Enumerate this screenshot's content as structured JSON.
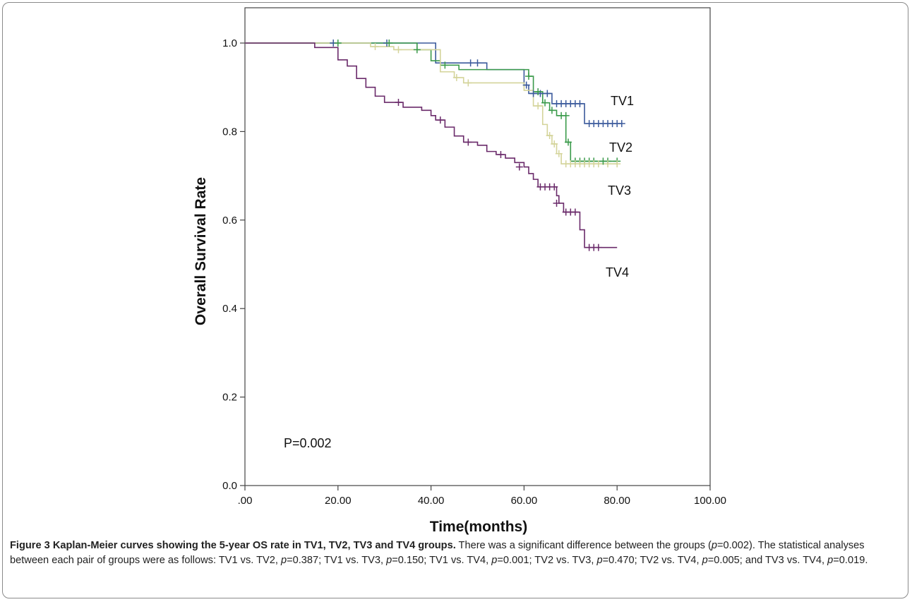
{
  "chart_data": {
    "type": "line",
    "subtype": "kaplan-meier",
    "xlabel": "Time(months)",
    "ylabel": "Overall Survival Rate",
    "xlim": [
      0,
      100
    ],
    "ylim": [
      0,
      1
    ],
    "xticks": [
      ".00",
      "20.00",
      "40.00",
      "60.00",
      "80.00",
      "100.00"
    ],
    "yticks": [
      "0.0",
      "0.2",
      "0.4",
      "0.6",
      "0.8",
      "1.0"
    ],
    "grid": false,
    "annotation": "P=0.002",
    "series": [
      {
        "name": "TV1",
        "color": "#3b5a9c",
        "steps": [
          [
            0,
            1.0
          ],
          [
            41,
            0.955
          ],
          [
            52,
            0.94
          ],
          [
            60,
            0.905
          ],
          [
            61,
            0.886
          ],
          [
            66,
            0.863
          ],
          [
            73,
            0.818
          ],
          [
            81,
            0.818
          ]
        ],
        "censored": [
          [
            19,
            1.0
          ],
          [
            30.5,
            1.0
          ],
          [
            48.5,
            0.955
          ],
          [
            50,
            0.955
          ],
          [
            60.5,
            0.905
          ],
          [
            62,
            0.886
          ],
          [
            63.5,
            0.886
          ],
          [
            65,
            0.886
          ],
          [
            67,
            0.863
          ],
          [
            68,
            0.863
          ],
          [
            69,
            0.863
          ],
          [
            70,
            0.863
          ],
          [
            71,
            0.863
          ],
          [
            72,
            0.863
          ],
          [
            74,
            0.818
          ],
          [
            75,
            0.818
          ],
          [
            76,
            0.818
          ],
          [
            77,
            0.818
          ],
          [
            78,
            0.818
          ],
          [
            79,
            0.818
          ],
          [
            80,
            0.818
          ],
          [
            81,
            0.818
          ]
        ]
      },
      {
        "name": "TV2",
        "color": "#3a9a4a",
        "steps": [
          [
            0,
            1.0
          ],
          [
            37,
            0.985
          ],
          [
            40,
            0.96
          ],
          [
            42,
            0.95
          ],
          [
            46,
            0.94
          ],
          [
            61,
            0.925
          ],
          [
            62,
            0.89
          ],
          [
            64,
            0.865
          ],
          [
            65.5,
            0.848
          ],
          [
            67,
            0.836
          ],
          [
            69,
            0.776
          ],
          [
            70,
            0.733
          ],
          [
            80,
            0.733
          ]
        ],
        "censored": [
          [
            20,
            1.0
          ],
          [
            31,
            1.0
          ],
          [
            37,
            0.985
          ],
          [
            43,
            0.95
          ],
          [
            61,
            0.925
          ],
          [
            63,
            0.89
          ],
          [
            64.5,
            0.865
          ],
          [
            66,
            0.848
          ],
          [
            68,
            0.836
          ],
          [
            69,
            0.836
          ],
          [
            69.5,
            0.776
          ],
          [
            71,
            0.733
          ],
          [
            72,
            0.733
          ],
          [
            73,
            0.733
          ],
          [
            74,
            0.733
          ],
          [
            75,
            0.733
          ],
          [
            77,
            0.733
          ],
          [
            78,
            0.733
          ],
          [
            80,
            0.733
          ]
        ]
      },
      {
        "name": "TV3",
        "color": "#d4d49a",
        "steps": [
          [
            0,
            1.0
          ],
          [
            27,
            0.992
          ],
          [
            32,
            0.985
          ],
          [
            42,
            0.935
          ],
          [
            45,
            0.922
          ],
          [
            47,
            0.91
          ],
          [
            60,
            0.893
          ],
          [
            62,
            0.858
          ],
          [
            64,
            0.816
          ],
          [
            65,
            0.791
          ],
          [
            66,
            0.772
          ],
          [
            67,
            0.75
          ],
          [
            68,
            0.727
          ],
          [
            80,
            0.727
          ]
        ],
        "censored": [
          [
            28,
            0.992
          ],
          [
            33,
            0.985
          ],
          [
            45.5,
            0.922
          ],
          [
            48,
            0.91
          ],
          [
            63,
            0.858
          ],
          [
            65.5,
            0.791
          ],
          [
            66.5,
            0.772
          ],
          [
            67.5,
            0.75
          ],
          [
            69,
            0.727
          ],
          [
            70,
            0.727
          ],
          [
            71,
            0.727
          ],
          [
            72,
            0.727
          ],
          [
            73,
            0.727
          ],
          [
            74,
            0.727
          ],
          [
            75,
            0.727
          ],
          [
            76,
            0.727
          ],
          [
            78,
            0.727
          ],
          [
            80,
            0.727
          ]
        ]
      },
      {
        "name": "TV4",
        "color": "#6a2a6a",
        "steps": [
          [
            0,
            1.0
          ],
          [
            15,
            0.99
          ],
          [
            20,
            0.962
          ],
          [
            22,
            0.948
          ],
          [
            24,
            0.92
          ],
          [
            26,
            0.9
          ],
          [
            28,
            0.88
          ],
          [
            30,
            0.866
          ],
          [
            34,
            0.855
          ],
          [
            38,
            0.848
          ],
          [
            40,
            0.836
          ],
          [
            41,
            0.826
          ],
          [
            43,
            0.81
          ],
          [
            45,
            0.79
          ],
          [
            47,
            0.776
          ],
          [
            50,
            0.769
          ],
          [
            52,
            0.755
          ],
          [
            54,
            0.748
          ],
          [
            56,
            0.74
          ],
          [
            58,
            0.73
          ],
          [
            60,
            0.72
          ],
          [
            61,
            0.705
          ],
          [
            62,
            0.692
          ],
          [
            63,
            0.675
          ],
          [
            67,
            0.655
          ],
          [
            67.5,
            0.638
          ],
          [
            68.5,
            0.618
          ],
          [
            72,
            0.578
          ],
          [
            73,
            0.538
          ],
          [
            80,
            0.538
          ]
        ],
        "censored": [
          [
            33,
            0.866
          ],
          [
            42,
            0.826
          ],
          [
            48,
            0.776
          ],
          [
            55,
            0.748
          ],
          [
            59,
            0.72
          ],
          [
            63.5,
            0.675
          ],
          [
            64.5,
            0.675
          ],
          [
            65.5,
            0.675
          ],
          [
            66.5,
            0.675
          ],
          [
            67,
            0.638
          ],
          [
            69,
            0.618
          ],
          [
            70,
            0.618
          ],
          [
            71,
            0.618
          ],
          [
            74,
            0.538
          ],
          [
            75,
            0.538
          ],
          [
            76,
            0.538
          ]
        ]
      }
    ],
    "series_labels": [
      "TV1",
      "TV2",
      "TV3",
      "TV4"
    ]
  },
  "caption": {
    "title": "Figure 3 Kaplan-Meier curves showing the 5-year OS rate in TV1, TV2, TV3 and TV4 groups.",
    "body": [
      {
        "t": " There was a significant difference between the groups ("
      },
      {
        "t": "p",
        "i": true
      },
      {
        "t": "=0.002). The statistical analyses between each pair of groups were as follows: TV1 vs. TV2, "
      },
      {
        "t": "p",
        "i": true
      },
      {
        "t": "=0.387; TV1 vs. TV3, "
      },
      {
        "t": "p",
        "i": true
      },
      {
        "t": "=0.150; TV1 vs. TV4, "
      },
      {
        "t": "p",
        "i": true
      },
      {
        "t": "=0.001; TV2 vs. TV3, "
      },
      {
        "t": "p",
        "i": true
      },
      {
        "t": "=0.470; TV2 vs. TV4, "
      },
      {
        "t": "p",
        "i": true
      },
      {
        "t": "=0.005; and TV3 vs. TV4, "
      },
      {
        "t": "p",
        "i": true
      },
      {
        "t": "=0.019."
      }
    ]
  }
}
